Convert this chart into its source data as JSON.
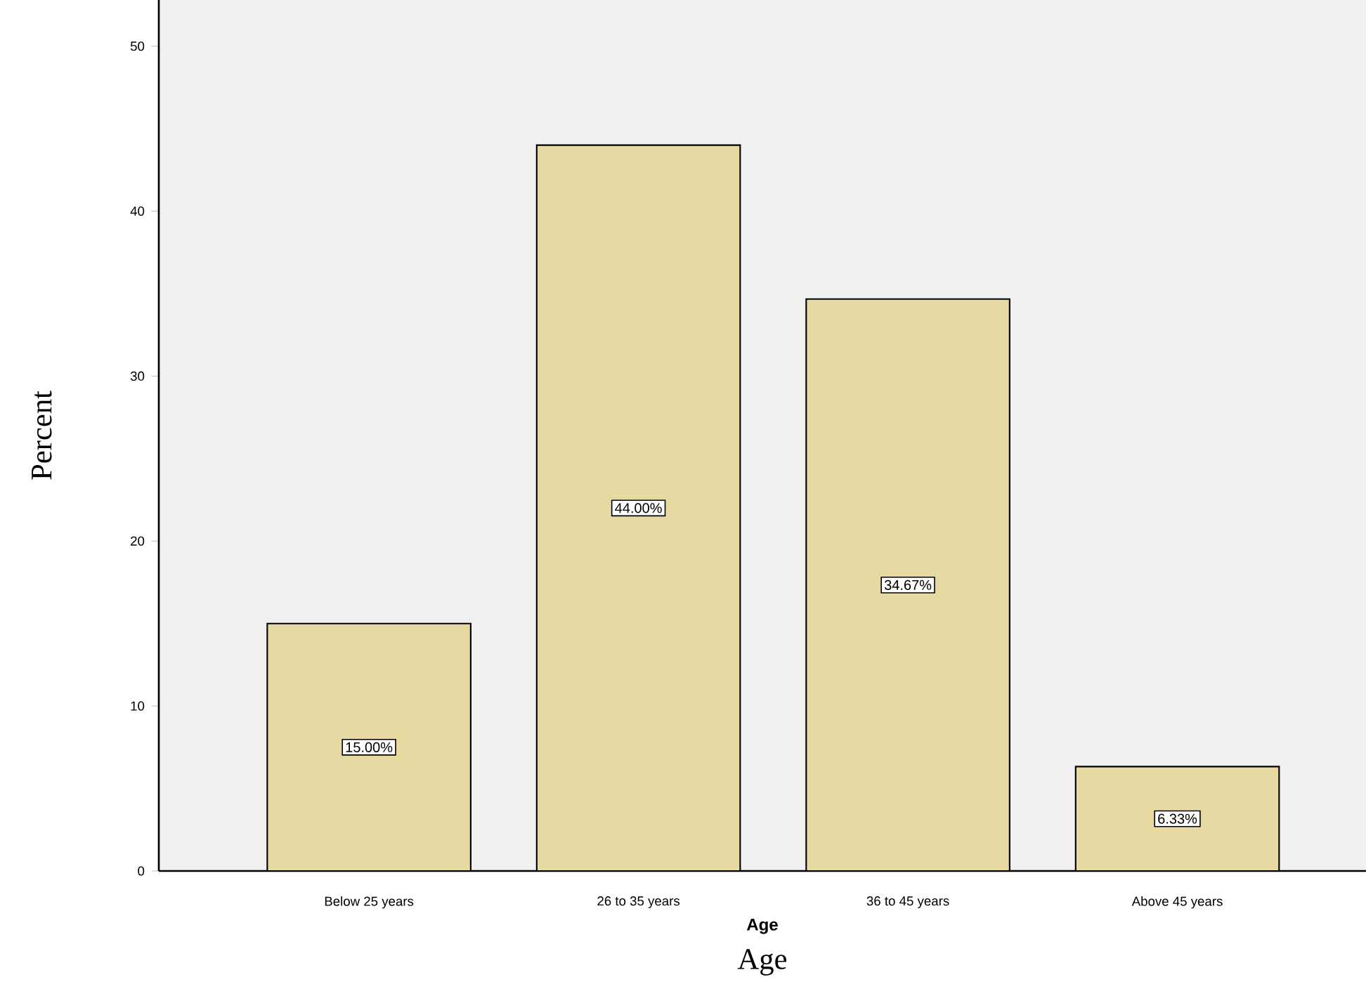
{
  "chart_data": {
    "type": "bar",
    "xlabel": "Age",
    "ylabel": "Percent",
    "categories": [
      "Below 25 years",
      "26 to 35 years",
      "36 to 45 years",
      "Above 45 years"
    ],
    "values": [
      15.0,
      44.0,
      34.67,
      6.33
    ],
    "value_labels": [
      "15.00%",
      "44.00%",
      "34.67%",
      "6.33%"
    ],
    "color": "#e6d9a2",
    "ylim": [
      0,
      52.8
    ],
    "yticks": [
      0,
      10,
      20,
      30,
      40,
      50
    ],
    "grid": false,
    "annotations": [
      "Age"
    ]
  }
}
